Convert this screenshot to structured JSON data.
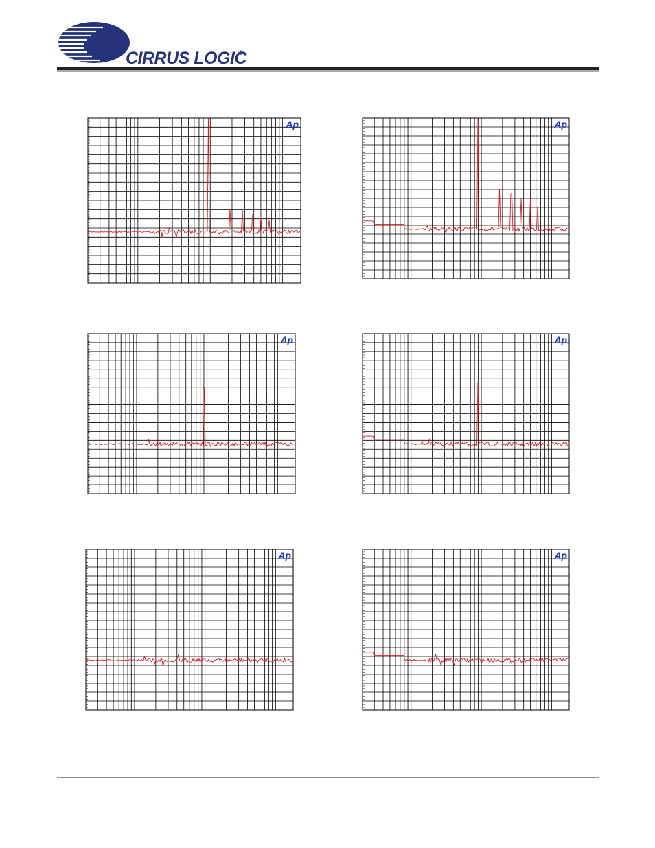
{
  "header": {
    "logo": "CIRRUS LOGIC",
    "registered": "®"
  },
  "plots": [
    {
      "badge": "Ap"
    },
    {
      "badge": "Ap"
    },
    {
      "badge": "Ap"
    },
    {
      "badge": "Ap"
    },
    {
      "badge": "Ap"
    },
    {
      "badge": "Ap"
    }
  ]
}
